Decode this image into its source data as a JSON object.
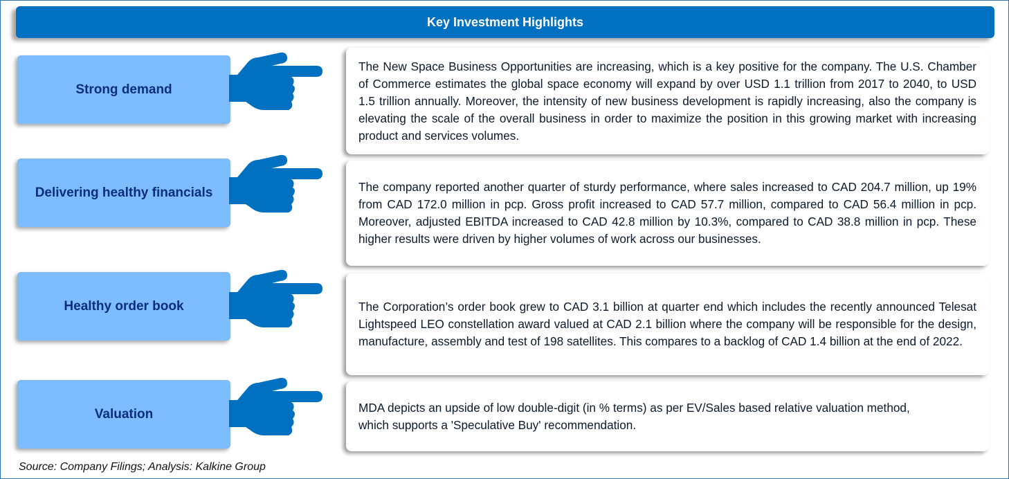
{
  "header": {
    "title": "Key Investment Highlights"
  },
  "highlights": [
    {
      "label": "Strong demand",
      "text": "The New Space Business Opportunities are increasing, which is a key positive for the company. The U.S. Chamber of Commerce estimates the global space economy will expand by over USD 1.1 trillion from 2017 to 2040, to USD 1.5 trillion annually. Moreover, the intensity of new business development is rapidly increasing, also the company is elevating the scale of the overall business in order to maximize the position in this growing market with increasing product and services volumes."
    },
    {
      "label": "Delivering healthy financials",
      "text": "The company reported another quarter of sturdy performance, where  sales increased to CAD 204.7 million, up 19% from CAD 172.0 million in pcp. Gross profit increased to CAD 57.7 million, compared to CAD 56.4 million in pcp. Moreover, adjusted EBITDA increased to CAD 42.8 million by 10.3%, compared to CAD 38.8 million in pcp. These higher results were driven by higher volumes of work across our businesses."
    },
    {
      "label": "Healthy order book",
      "text": "The Corporation’s order book grew to CAD 3.1 billion at quarter end which includes the recently announced Telesat Lightspeed LEO constellation award valued at CAD 2.1 billion where the company will be responsible for the design, manufacture, assembly and test of 198 satellites. This compares to a backlog of CAD 1.4 billion at the end of 2022."
    },
    {
      "label": "Valuation",
      "text": "MDA depicts an upside of low double-digit (in % terms) as per EV/Sales based relative valuation method, which supports a 'Speculative Buy' recommendation."
    }
  ],
  "source": "Source: Company Filings; Analysis: Kalkine Group",
  "colors": {
    "header": "#0070C0",
    "label_bg": "#7DBDFF",
    "label_text": "#0B2E7A",
    "hand": "#0070C0"
  }
}
